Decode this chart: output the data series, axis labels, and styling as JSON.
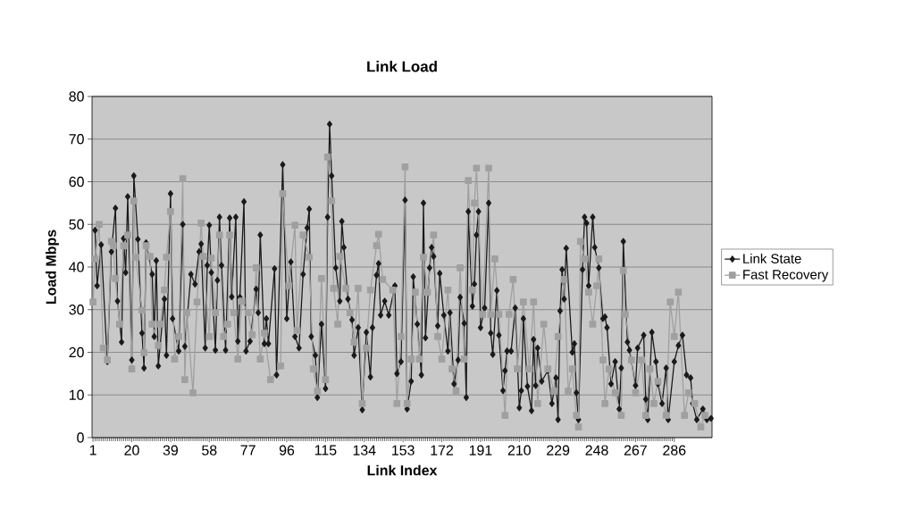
{
  "chart_data": {
    "type": "line",
    "title": "Link Load",
    "xlabel": "Link Index",
    "ylabel": "Load Mbps",
    "xlim": [
      0.5,
      304.5
    ],
    "xticks": [
      1,
      20,
      39,
      58,
      77,
      96,
      115,
      134,
      153,
      172,
      191,
      210,
      229,
      248,
      267,
      286
    ],
    "ylim": [
      0,
      80
    ],
    "yticks": [
      0,
      10,
      20,
      30,
      40,
      50,
      60,
      70,
      80
    ],
    "grid": "y",
    "legend": "right",
    "line_style": "solid",
    "series": [
      {
        "name": "Link State",
        "color": "#1a1a1a",
        "marker": "diamond",
        "x": [
          2,
          3,
          5,
          8,
          10,
          12,
          13,
          15,
          16,
          17,
          18,
          20,
          21,
          23,
          25,
          26,
          27,
          30,
          31,
          32,
          33,
          36,
          37,
          39,
          40,
          43,
          45,
          46,
          49,
          51,
          53,
          54,
          56,
          57,
          58,
          59,
          61,
          62,
          63,
          64,
          66,
          68,
          69,
          71,
          72,
          73,
          75,
          76,
          78,
          81,
          82,
          83,
          85,
          86,
          87,
          90,
          91,
          94,
          96,
          98,
          100,
          102,
          104,
          106,
          107,
          108,
          110,
          111,
          113,
          115,
          116,
          117,
          118,
          120,
          122,
          123,
          124,
          126,
          128,
          129,
          131,
          133,
          135,
          137,
          138,
          140,
          141,
          142,
          144,
          146,
          149,
          150,
          152,
          154,
          155,
          157,
          158,
          160,
          162,
          163,
          164,
          166,
          167,
          168,
          170,
          171,
          173,
          175,
          176,
          178,
          180,
          181,
          183,
          184,
          185,
          187,
          188,
          189,
          190,
          191,
          193,
          195,
          196,
          197,
          199,
          200,
          202,
          203,
          204,
          206,
          208,
          210,
          211,
          212,
          214,
          216,
          217,
          218,
          219,
          221,
          224,
          226,
          228,
          229,
          230,
          231,
          232,
          233,
          236,
          237,
          238,
          239,
          241,
          242,
          243,
          244,
          246,
          247,
          249,
          251,
          252,
          253,
          255,
          257,
          259,
          260,
          261,
          263,
          264,
          267,
          268,
          271,
          272,
          273,
          275,
          277,
          278,
          280,
          282,
          283,
          286,
          288,
          290,
          292,
          294,
          295,
          297,
          300,
          302,
          304
        ],
        "values": [
          48.6,
          35.6,
          45.2,
          17.8,
          43.6,
          53.8,
          32,
          22.4,
          46.7,
          38.7,
          56.5,
          18.2,
          61.4,
          46.5,
          24.5,
          16.3,
          45.7,
          38.3,
          23.7,
          41.5,
          16.8,
          32.5,
          19.3,
          57.2,
          27.9,
          20.3,
          50,
          21.4,
          38.3,
          36,
          43.6,
          45.4,
          21,
          40.4,
          49.8,
          38.7,
          20.5,
          36.9,
          51.7,
          40.4,
          20.5,
          51.5,
          33,
          51.7,
          22.6,
          32.9,
          55.3,
          20.3,
          22.6,
          34.8,
          29.3,
          47.5,
          22,
          27.9,
          22,
          39.6,
          14.7,
          64,
          27.9,
          41.2,
          23.7,
          21,
          38.3,
          49.2,
          53.6,
          23.7,
          19.3,
          9.4,
          26.6,
          11.5,
          51.7,
          73.5,
          61.4,
          39.8,
          32,
          50.7,
          44.6,
          32.5,
          27.6,
          19.3,
          25.8,
          6.5,
          24.7,
          14.2,
          25.8,
          38.1,
          40.8,
          28.7,
          32,
          28.7,
          35.6,
          15,
          17.8,
          55.7,
          6.7,
          13.2,
          37.7,
          26.6,
          14.7,
          55,
          23.4,
          39.8,
          44.6,
          42.5,
          26.2,
          38.5,
          28.7,
          20.3,
          29.3,
          12.6,
          18.2,
          32.9,
          26.8,
          9.4,
          53,
          30.8,
          36,
          47.5,
          53,
          25.8,
          30.4,
          55,
          24.5,
          19.5,
          34.5,
          24,
          11,
          15.7,
          20.3,
          20.3,
          30.4,
          7,
          11,
          27.9,
          12,
          6.3,
          23,
          12.2,
          21,
          13.2,
          15.7,
          8,
          14,
          4.2,
          29.7,
          39.4,
          32.5,
          44.4,
          20,
          22,
          10.5,
          4.2,
          39.4,
          51.7,
          50.3,
          35.6,
          51.7,
          44.6,
          39.8,
          27.9,
          28.3,
          25.8,
          12.6,
          17.8,
          6.7,
          16.3,
          46,
          22.4,
          20.5,
          12.2,
          21,
          24,
          9,
          4.2,
          24.7,
          17.8,
          12.6,
          8,
          16.3,
          4.2,
          17.8,
          21.6,
          24,
          14.7,
          14,
          8,
          4.2,
          6.7,
          4.2,
          4.5
        ]
      },
      {
        "name": "Fast Recovery",
        "color": "#a0a0a0",
        "marker": "square",
        "x": [
          1,
          2,
          4,
          6,
          8,
          10,
          11,
          12,
          14,
          16,
          18,
          20,
          21,
          22,
          25,
          26,
          27,
          29,
          30,
          33,
          34,
          36,
          37,
          39,
          41,
          43,
          45,
          46,
          47,
          50,
          52,
          54,
          55,
          58,
          59,
          61,
          63,
          65,
          67,
          68,
          70,
          72,
          74,
          77,
          79,
          81,
          83,
          85,
          88,
          93,
          94,
          97,
          100,
          101,
          104,
          107,
          109,
          111,
          113,
          115,
          116,
          118,
          119,
          121,
          122,
          125,
          127,
          129,
          131,
          133,
          135,
          137,
          140,
          141,
          143,
          148,
          150,
          152,
          154,
          155,
          157,
          159,
          161,
          163,
          165,
          168,
          170,
          172,
          175,
          177,
          179,
          181,
          183,
          185,
          187,
          188,
          189,
          192,
          195,
          196,
          198,
          200,
          203,
          205,
          207,
          209,
          212,
          215,
          217,
          219,
          222,
          224,
          227,
          229,
          232,
          234,
          236,
          238,
          239,
          240,
          242,
          244,
          246,
          248,
          249,
          251,
          252,
          254,
          257,
          260,
          261,
          262,
          265,
          267,
          270,
          272,
          274,
          276,
          278,
          282,
          284,
          286,
          288,
          291,
          293,
          296,
          299,
          301
        ],
        "values": [
          31.8,
          41.9,
          50,
          21,
          18.2,
          46,
          45,
          37.3,
          26.6,
          45,
          47.5,
          16.1,
          55.5,
          42.3,
          29.9,
          19.9,
          45,
          42.5,
          26.6,
          21.6,
          26.6,
          34.6,
          42.3,
          53,
          18.4,
          23.7,
          60.7,
          13.6,
          29.3,
          10.5,
          31.8,
          50.3,
          42.5,
          23.7,
          42.1,
          29.3,
          47.5,
          23.7,
          26.6,
          47.5,
          29.3,
          18.4,
          32,
          29.3,
          24.1,
          39.8,
          18.4,
          24.5,
          13.6,
          16.8,
          57.2,
          35.6,
          49.8,
          25.1,
          47.5,
          42.3,
          16.1,
          10.9,
          37.3,
          13.6,
          65.8,
          55.5,
          35,
          26.6,
          42.5,
          35,
          29.3,
          22.4,
          35,
          8,
          21,
          34.6,
          45,
          47.7,
          37.1,
          34.6,
          8,
          23.7,
          63.5,
          8,
          18.4,
          34.1,
          18.4,
          42.3,
          34.1,
          47.5,
          23.7,
          18.4,
          34.6,
          16.1,
          10.9,
          39.8,
          18.4,
          60.3,
          34.6,
          55,
          63.2,
          28.9,
          63.2,
          28.9,
          41.9,
          28.9,
          5.2,
          28.9,
          37.1,
          16.1,
          31.8,
          16.1,
          31.8,
          8,
          26.6,
          16.1,
          10.9,
          23.7,
          37.1,
          10.9,
          16.1,
          5.2,
          2.5,
          46,
          41.9,
          34.1,
          26.6,
          35.6,
          41.9,
          18.2,
          8,
          16.1,
          10.5,
          5.2,
          39.2,
          28.9,
          18.2,
          10.5,
          18.2,
          5.2,
          16.1,
          8,
          13.2,
          5.2,
          31.8,
          23.7,
          34.1,
          5.2,
          10.5,
          8,
          2.5,
          5.2
        ]
      }
    ]
  }
}
